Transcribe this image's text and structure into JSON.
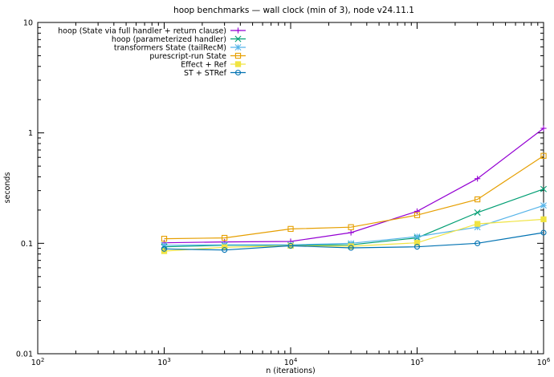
{
  "chart_data": {
    "type": "line",
    "title": "hoop benchmarks — wall clock (min of 3), node v24.11.1",
    "xlabel": "n (iterations)",
    "ylabel": "seconds",
    "xscale": "log",
    "yscale": "log",
    "xlim": [
      100,
      1000000
    ],
    "ylim": [
      0.01,
      10
    ],
    "x_ticks": [
      {
        "value": 100,
        "base": "10",
        "exp": "2"
      },
      {
        "value": 1000,
        "base": "10",
        "exp": "3"
      },
      {
        "value": 10000,
        "base": "10",
        "exp": "4"
      },
      {
        "value": 100000,
        "base": "10",
        "exp": "5"
      },
      {
        "value": 1000000,
        "base": "10",
        "exp": "6"
      }
    ],
    "y_ticks": [
      {
        "value": 0.01,
        "label": "0.01"
      },
      {
        "value": 0.1,
        "label": "0.1"
      },
      {
        "value": 1,
        "label": "1"
      },
      {
        "value": 10,
        "label": "10"
      }
    ],
    "grid": false,
    "legend_position": "top-center",
    "x": [
      1000,
      3000,
      10000,
      30000,
      100000,
      300000,
      1000000
    ],
    "series": [
      {
        "name": "hoop (State via full handler + return clause)",
        "color": "#9400d3",
        "marker": "plus",
        "values": [
          0.101,
          0.103,
          0.104,
          0.125,
          0.195,
          0.385,
          1.1
        ]
      },
      {
        "name": "hoop (parameterized handler)",
        "color": "#009e73",
        "marker": "cross",
        "values": [
          0.093,
          0.096,
          0.096,
          0.097,
          0.112,
          0.19,
          0.31
        ]
      },
      {
        "name": "transformers State (tailRecM)",
        "color": "#56b4e9",
        "marker": "star",
        "values": [
          0.096,
          0.097,
          0.097,
          0.1,
          0.115,
          0.14,
          0.22
        ]
      },
      {
        "name": "purescript-run State",
        "color": "#e69f00",
        "marker": "square",
        "values": [
          0.11,
          0.112,
          0.135,
          0.14,
          0.18,
          0.25,
          0.62
        ]
      },
      {
        "name": "Effect + Ref",
        "color": "#f0e442",
        "marker": "filled-square",
        "values": [
          0.085,
          0.092,
          0.095,
          0.094,
          0.101,
          0.15,
          0.165
        ]
      },
      {
        "name": "ST + STRef",
        "color": "#0072b2",
        "marker": "circle",
        "values": [
          0.089,
          0.087,
          0.095,
          0.091,
          0.093,
          0.1,
          0.125
        ]
      }
    ]
  }
}
